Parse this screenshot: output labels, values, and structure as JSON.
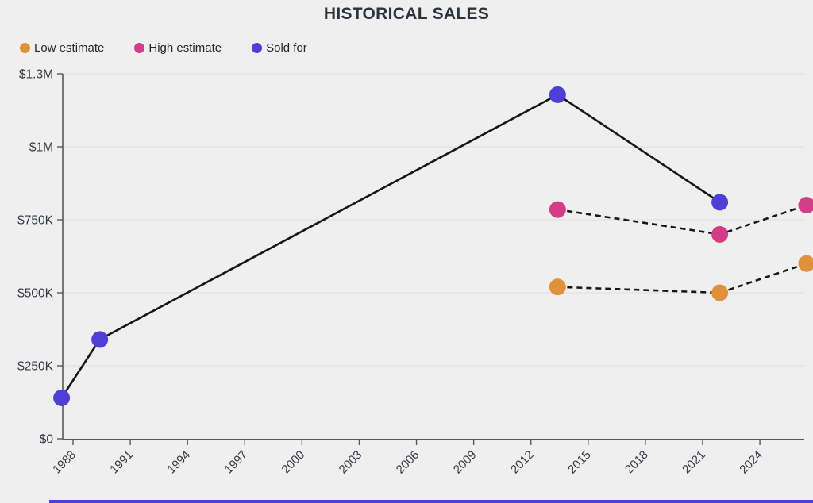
{
  "title": "HISTORICAL SALES",
  "colors": {
    "background": "#f0eff0",
    "grid": "#e2e1e3",
    "axis": "#54585e",
    "title_text": "#2d333c",
    "tick_text": "#33383f",
    "connector_line": "#161616",
    "accent_bar": "#4a43d4"
  },
  "chart_data": {
    "type": "line",
    "title": "HISTORICAL SALES",
    "xlabel": "",
    "ylabel": "",
    "x_ticks": [
      1988,
      1991,
      1994,
      1997,
      2000,
      2003,
      2006,
      2009,
      2012,
      2015,
      2018,
      2021,
      2024
    ],
    "x_range": [
      1987.4,
      2026.9
    ],
    "y_ticks": [
      {
        "label": "$0",
        "value": 0
      },
      {
        "label": "$250K",
        "value": 250000
      },
      {
        "label": "$500K",
        "value": 500000
      },
      {
        "label": "$750K",
        "value": 750000
      },
      {
        "label": "$1M",
        "value": 1000000
      },
      {
        "label": "$1.3M",
        "value": 1300000
      }
    ],
    "legend_position": "top-left",
    "grid": "horizontal",
    "series": [
      {
        "name": "Low estimate",
        "color": "#e0913c",
        "line_style": "dashed",
        "points": [
          {
            "year": 2013.4,
            "value": 520000
          },
          {
            "year": 2021.9,
            "value": 500000
          },
          {
            "year": 2026.45,
            "value": 600000
          }
        ]
      },
      {
        "name": "High estimate",
        "color": "#d33c86",
        "line_style": "dashed",
        "points": [
          {
            "year": 2013.4,
            "value": 785000
          },
          {
            "year": 2021.9,
            "value": 700000
          },
          {
            "year": 2026.45,
            "value": 800000
          }
        ]
      },
      {
        "name": "Sold for",
        "color": "#4e3fd6",
        "line_style": "solid",
        "points": [
          {
            "year": 1987.4,
            "value": 140000
          },
          {
            "year": 1989.4,
            "value": 340000
          },
          {
            "year": 2013.4,
            "value": 1214000
          },
          {
            "year": 2021.9,
            "value": 810000
          }
        ]
      }
    ]
  }
}
